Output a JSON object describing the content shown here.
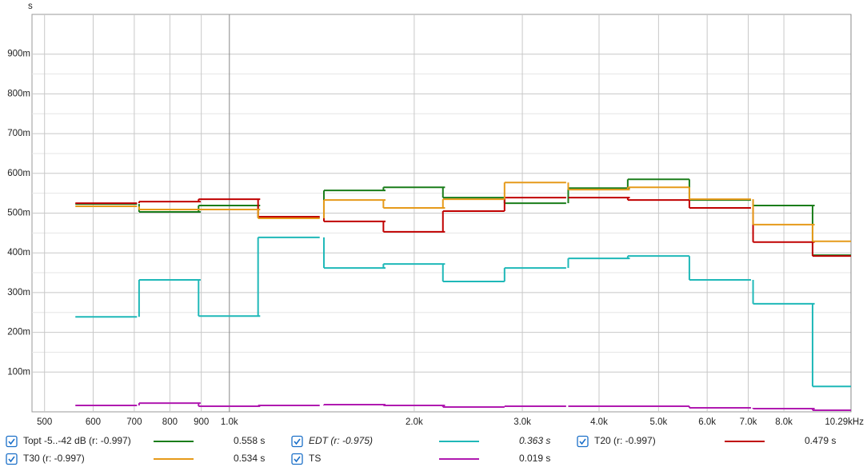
{
  "chart_data": {
    "type": "step",
    "ylabel": "s",
    "xscale": "log",
    "grid": true,
    "x": [
      630,
      800,
      1000,
      1250,
      1600,
      2000,
      2500,
      3150,
      4000,
      5000,
      6300,
      8000,
      10000
    ],
    "xlim": [
      477,
      10290
    ],
    "xticks": [
      500,
      600,
      700,
      800,
      900,
      {
        "value": 1000,
        "label": "1.0k"
      },
      {
        "value": 2000,
        "label": "2.0k"
      },
      {
        "value": 3000,
        "label": "3.0k"
      },
      {
        "value": 4000,
        "label": "4.0k"
      },
      {
        "value": 5000,
        "label": "5.0k"
      },
      {
        "value": 6000,
        "label": "6.0k"
      },
      {
        "value": 7000,
        "label": "7.0k"
      },
      {
        "value": 8000,
        "label": "8.0k"
      },
      {
        "value": 10290,
        "label": "10.29kHz"
      }
    ],
    "ylim": [
      0,
      1.0
    ],
    "yticks": [
      {
        "value": 0.1,
        "label": "100m"
      },
      {
        "value": 0.2,
        "label": "200m"
      },
      {
        "value": 0.3,
        "label": "300m"
      },
      {
        "value": 0.4,
        "label": "400m"
      },
      {
        "value": 0.5,
        "label": "500m"
      },
      {
        "value": 0.6,
        "label": "600m"
      },
      {
        "value": 0.7,
        "label": "700m"
      },
      {
        "value": 0.8,
        "label": "800m"
      },
      {
        "value": 0.9,
        "label": "900m"
      }
    ],
    "series": [
      {
        "name": "Topt -5..-42 dB (r: -0.997)",
        "color": "#1a7d1a",
        "summary": "0.558 s",
        "values": [
          0.523,
          0.503,
          0.519,
          0.489,
          0.557,
          0.565,
          0.539,
          0.525,
          0.563,
          0.585,
          0.533,
          0.519,
          0.394
        ]
      },
      {
        "name": "EDT (r: -0.975)",
        "color": "#1fb8b8",
        "summary": "0.363 s",
        "values": [
          0.239,
          0.332,
          0.241,
          0.439,
          0.362,
          0.372,
          0.328,
          0.362,
          0.386,
          0.392,
          0.332,
          0.272,
          0.064
        ]
      },
      {
        "name": "T20 (r: -0.997)",
        "color": "#c00000",
        "summary": "0.479 s",
        "values": [
          0.525,
          0.529,
          0.535,
          0.491,
          0.479,
          0.453,
          0.505,
          0.539,
          0.539,
          0.533,
          0.513,
          0.427,
          0.392
        ]
      },
      {
        "name": "T30 (r: -0.997)",
        "color": "#e69a1a",
        "summary": "0.534 s",
        "values": [
          0.517,
          0.509,
          0.509,
          0.487,
          0.533,
          0.513,
          0.535,
          0.577,
          0.559,
          0.565,
          0.535,
          0.471,
          0.429
        ]
      },
      {
        "name": "TS",
        "color": "#b01ab0",
        "summary": "0.019 s",
        "values": [
          0.016,
          0.022,
          0.014,
          0.016,
          0.018,
          0.016,
          0.012,
          0.014,
          0.014,
          0.014,
          0.01,
          0.008,
          0.004
        ]
      }
    ]
  }
}
